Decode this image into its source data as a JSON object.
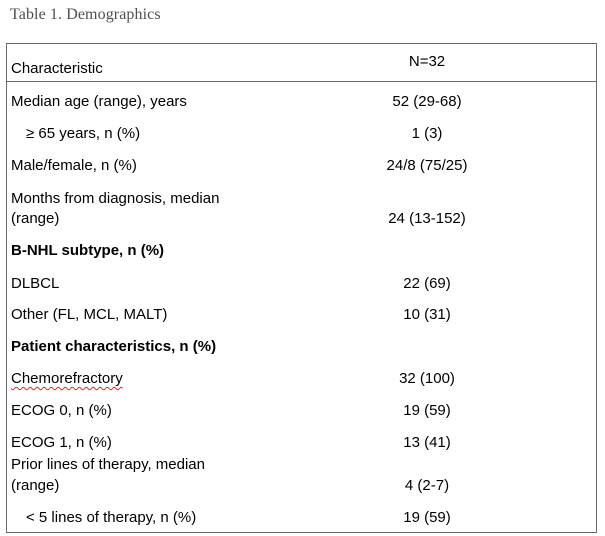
{
  "caption": "Table 1. Demographics",
  "header": {
    "characteristic": "Characteristic",
    "n": "N=32"
  },
  "rows": [
    {
      "label": "Median age (range), years",
      "value": "52 (29-68)"
    },
    {
      "label": "≥ 65 years, n (%)",
      "value": "1 (3)"
    },
    {
      "label": "Male/female, n (%)",
      "value": "24/8 (75/25)"
    },
    {
      "label_line1": "Months from diagnosis, median",
      "label_line2": "(range)",
      "value": "24 (13-152)"
    },
    {
      "label": "B-NHL subtype, n (%)"
    },
    {
      "label": "DLBCL",
      "value": "22 (69)"
    },
    {
      "label": "Other (FL, MCL, MALT)",
      "value": "10 (31)"
    },
    {
      "label": "Patient characteristics, n (%)"
    },
    {
      "label": "Chemorefractory",
      "value": "32 (100)"
    },
    {
      "label": "ECOG 0, n (%)",
      "value": "19 (59)"
    },
    {
      "label": "ECOG 1, n (%)",
      "value": "13 (41)"
    },
    {
      "label_line1": "Prior lines of therapy, median",
      "label_line2": "(range)",
      "value": "4 (2-7)"
    },
    {
      "label": "< 5 lines of therapy, n (%)",
      "value": "19 (59)"
    }
  ]
}
